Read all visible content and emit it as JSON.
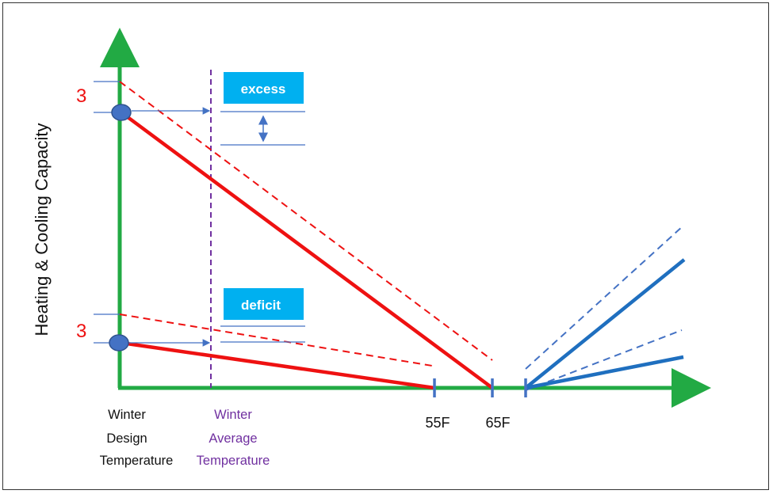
{
  "y_axis_label": "Heating & Cooling Capacity",
  "left_values": {
    "upper": "3",
    "lower": "3"
  },
  "callouts": {
    "excess": "excess",
    "deficit": "deficit"
  },
  "x_ticks": {
    "t55": "55F",
    "t65": "65F"
  },
  "x_captions": {
    "winter_design": [
      "Winter",
      "Design",
      "Temperature"
    ],
    "winter_average": [
      "Winter",
      "Average",
      "Temperature"
    ]
  },
  "colors": {
    "axis": "#22aa44",
    "heating": "#ee1111",
    "cooling": "#1f6fbf",
    "marker": "#4472c4",
    "callout_bg": "#00b0f0",
    "winter_average_line": "#7030a0",
    "pointer": "#4472c4"
  }
}
